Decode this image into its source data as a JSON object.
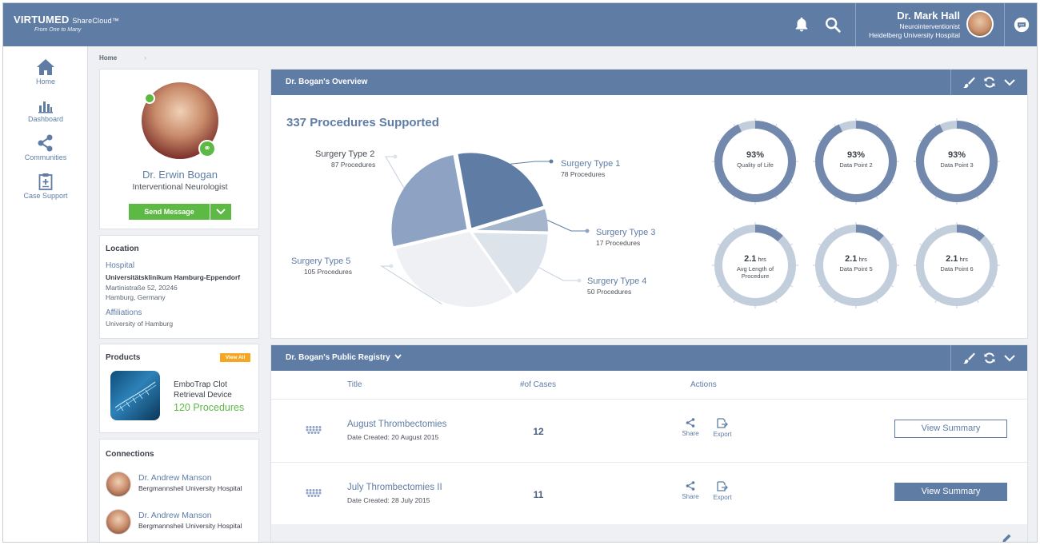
{
  "app": {
    "brand": "VIRTUMED",
    "brand_sub": "ShareCloud™",
    "tagline": "From One to Many"
  },
  "user": {
    "name": "Dr. Mark Hall",
    "role": "Neurointerventionist",
    "hospital": "Heidelberg University Hospital"
  },
  "nav": {
    "items": [
      {
        "label": "Home",
        "icon": "home-icon"
      },
      {
        "label": "Dashboard",
        "icon": "bar-chart-icon"
      },
      {
        "label": "Communities",
        "icon": "share-nodes-icon"
      },
      {
        "label": "Case Support",
        "icon": "clipboard-icon"
      }
    ]
  },
  "breadcrumb": {
    "home": "Home",
    "sep": "›"
  },
  "profile": {
    "name": "Dr. Erwin Bogan",
    "title": "Interventional Neurologist",
    "send_label": "Send Message"
  },
  "location": {
    "heading": "Location",
    "hospital_label": "Hospital",
    "hospital_name": "Universitätsklinikum Hamburg-Eppendorf",
    "address1": "Martinistraße 52, 20246",
    "address2": "Hamburg, Germany",
    "affiliations_label": "Affiliations",
    "affiliation": "University of Hamburg"
  },
  "products": {
    "heading": "Products",
    "view_all": "View All",
    "items": [
      {
        "name": "EmboTrap Clot Retrieval Device",
        "procedures": "120 Procedures"
      }
    ]
  },
  "connections": {
    "heading": "Connections",
    "items": [
      {
        "name": "Dr. Andrew Manson",
        "hospital": "Bergmannsheil University Hospital"
      },
      {
        "name": "Dr. Andrew Manson",
        "hospital": "Bergmannsheil University Hospital"
      }
    ]
  },
  "overview": {
    "title": "Dr. Bogan's Overview",
    "procedures_title": "337 Procedures Supported",
    "pie": [
      {
        "name": "Surgery Type 1",
        "sub": "78 Procedures",
        "value": 78,
        "color": "#5f7ca5",
        "label_color": "#5f7ca5"
      },
      {
        "name": "Surgery Type 3",
        "sub": "17 Procedures",
        "value": 17,
        "color": "#a4b5cc",
        "label_color": "#5f7ca5"
      },
      {
        "name": "Surgery Type 4",
        "sub": "50 Procedures",
        "value": 50,
        "color": "#dde3ea",
        "label_color": "#5f7ca5"
      },
      {
        "name": "Surgery Type 5",
        "sub": "105 Procedures",
        "value": 105,
        "color": "#eef0f4",
        "label_color": "#5f7ca5"
      },
      {
        "name": "Surgery Type 2",
        "sub": "87 Procedures",
        "value": 87,
        "color": "#8ea3c3",
        "label_color": "#4a4f57"
      }
    ],
    "gauges": [
      {
        "value": "93%",
        "unit": "",
        "label": "Quality of Life",
        "fraction": 0.93
      },
      {
        "value": "93%",
        "unit": "",
        "label": "Data Point 2",
        "fraction": 0.93
      },
      {
        "value": "93%",
        "unit": "",
        "label": "Data Point 3",
        "fraction": 0.93
      },
      {
        "value": "2.1",
        "unit": " hrs",
        "label": "Avg Length of Procedure",
        "fraction": 0.12
      },
      {
        "value": "2.1",
        "unit": " hrs",
        "label": "Data Point 5",
        "fraction": 0.12
      },
      {
        "value": "2.1",
        "unit": " hrs",
        "label": "Data Point 6",
        "fraction": 0.12
      }
    ]
  },
  "registry": {
    "title": "Dr. Bogan's Public Registry",
    "columns": {
      "title": "Title",
      "cases": "#of Cases",
      "actions": "Actions"
    },
    "rows": [
      {
        "title": "August Thrombectomies",
        "date": "Date Created: 20 August 2015",
        "cases": "12",
        "share": "Share",
        "export": "Export",
        "button": "View Summary"
      },
      {
        "title": "July Thrombectomies II",
        "date": "Date Created: 28 July 2015",
        "cases": "11",
        "share": "Share",
        "export": "Export",
        "button": "View Summary"
      }
    ]
  },
  "colors": {
    "primary": "#5f7ca5",
    "accent_green": "#5cb944",
    "accent_orange": "#f5a623"
  }
}
